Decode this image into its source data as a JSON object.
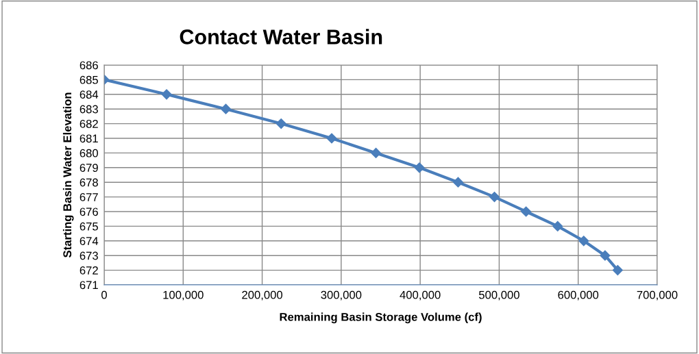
{
  "chart_data": {
    "type": "line",
    "title": "Contact Water Basin",
    "xlabel": "Remaining Basin Storage Volume (cf)",
    "ylabel": "Starting Basin Water Elevation",
    "x": [
      0,
      79000,
      154000,
      224000,
      288000,
      344000,
      399000,
      448000,
      494000,
      534000,
      574000,
      607000,
      634000,
      650000
    ],
    "series": [
      {
        "color": "#4a7ebb",
        "values": [
          685,
          684,
          683,
          682,
          681,
          680,
          679,
          678,
          677,
          676,
          675,
          674,
          673,
          672
        ]
      }
    ],
    "xlim": [
      0,
      700000
    ],
    "xticks": [
      {
        "value": 0,
        "label": "0"
      },
      {
        "value": 100000,
        "label": "100,000"
      },
      {
        "value": 200000,
        "label": "200,000"
      },
      {
        "value": 300000,
        "label": "300,000"
      },
      {
        "value": 400000,
        "label": "400,000"
      },
      {
        "value": 500000,
        "label": "500,000"
      },
      {
        "value": 600000,
        "label": "600,000"
      },
      {
        "value": 700000,
        "label": "700,000"
      }
    ],
    "ylim": [
      671,
      686
    ],
    "yticks": [
      671,
      672,
      673,
      674,
      675,
      676,
      677,
      678,
      679,
      680,
      681,
      682,
      683,
      684,
      685,
      686
    ],
    "grid": true,
    "marker": "diamond",
    "line_style": "solid"
  }
}
